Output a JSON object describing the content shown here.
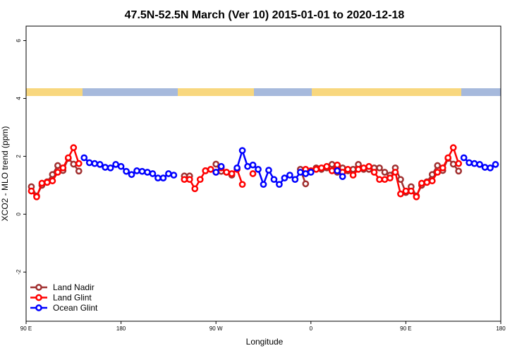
{
  "chart_data": {
    "type": "line",
    "title": "47.5N-52.5N March (Ver 10)   2015-01-01 to 2020-12-18",
    "xlabel": "Longitude",
    "ylabel": "XCO2 - MLO trend (ppm)",
    "xlim": [
      90,
      540
    ],
    "ylim": [
      -3.7,
      6.5
    ],
    "xticks": [
      {
        "value": 90,
        "label": "90 E"
      },
      180,
      {
        "value": 270,
        "label": "90 W"
      },
      {
        "value": 360,
        "label": "0"
      },
      {
        "value": 450,
        "label": "90 E"
      },
      {
        "value": 540,
        "label": "180"
      }
    ],
    "yticks": [
      -2,
      0,
      2,
      4,
      6
    ],
    "legend": "bottom-left",
    "x": [
      95,
      100,
      105,
      110,
      115,
      120,
      125,
      130,
      135,
      140,
      145,
      150,
      155,
      160,
      165,
      170,
      175,
      180,
      185,
      190,
      195,
      200,
      205,
      210,
      215,
      220,
      225,
      230,
      235,
      240,
      245,
      250,
      255,
      260,
      265,
      270,
      275,
      280,
      285,
      290,
      295,
      300,
      305,
      310,
      315,
      320,
      325,
      330,
      335,
      340,
      345,
      350,
      355,
      360,
      365,
      370,
      375,
      380,
      385,
      390,
      395,
      400,
      405,
      410,
      415,
      420,
      425,
      430,
      435,
      440,
      445,
      450,
      455,
      460,
      465,
      470,
      475,
      480,
      485,
      490,
      495,
      500,
      505,
      510,
      515,
      520,
      525,
      530,
      535
    ],
    "series": [
      {
        "name": "Land Nadir",
        "color": "#a03030",
        "values": [
          0.95,
          0.63,
          1.0,
          1.12,
          1.37,
          1.68,
          1.51,
          1.93,
          1.73,
          1.49,
          null,
          null,
          null,
          null,
          null,
          null,
          null,
          null,
          null,
          null,
          null,
          null,
          null,
          null,
          null,
          null,
          null,
          null,
          null,
          1.32,
          1.32,
          null,
          null,
          1.5,
          null,
          1.73,
          1.48,
          1.45,
          1.35,
          null,
          null,
          null,
          null,
          null,
          null,
          null,
          null,
          null,
          null,
          null,
          null,
          1.55,
          1.05,
          null,
          1.6,
          1.55,
          1.6,
          1.72,
          1.45,
          1.6,
          1.5,
          1.55,
          1.72,
          1.55,
          1.55,
          1.6,
          1.6,
          1.45,
          1.35,
          1.6,
          1.2,
          0.75,
          0.95,
          0.63,
          1.0,
          1.12,
          1.37,
          1.68,
          1.51,
          1.93,
          1.73,
          1.49,
          null,
          null,
          null,
          null,
          null,
          null,
          null
        ]
      },
      {
        "name": "Land Glint",
        "color": "#ff0000",
        "values": [
          0.8,
          0.6,
          1.07,
          1.1,
          1.15,
          1.45,
          1.6,
          1.95,
          2.3,
          1.75,
          null,
          null,
          null,
          null,
          null,
          null,
          null,
          null,
          null,
          null,
          null,
          null,
          null,
          null,
          null,
          null,
          null,
          null,
          null,
          1.2,
          1.2,
          0.88,
          1.2,
          1.5,
          1.55,
          1.45,
          1.6,
          1.45,
          1.4,
          1.55,
          1.03,
          null,
          1.4,
          null,
          null,
          null,
          null,
          null,
          null,
          null,
          null,
          null,
          1.55,
          1.5,
          1.55,
          1.6,
          1.65,
          1.5,
          1.7,
          1.45,
          1.55,
          1.35,
          1.55,
          1.6,
          1.65,
          1.45,
          1.2,
          1.2,
          1.25,
          1.45,
          0.7,
          0.8,
          0.8,
          0.6,
          1.07,
          1.1,
          1.15,
          1.45,
          1.6,
          1.95,
          2.3,
          1.75,
          null,
          null,
          null,
          null,
          null,
          null,
          null
        ]
      },
      {
        "name": "Ocean Glint",
        "color": "#0000ff",
        "values": [
          null,
          null,
          null,
          null,
          null,
          null,
          null,
          null,
          null,
          null,
          1.95,
          1.78,
          1.75,
          1.72,
          1.62,
          1.6,
          1.72,
          1.65,
          1.48,
          1.37,
          1.5,
          1.48,
          1.45,
          1.4,
          1.25,
          1.25,
          1.4,
          1.35,
          null,
          null,
          null,
          null,
          null,
          null,
          null,
          1.45,
          1.65,
          null,
          null,
          1.6,
          2.2,
          1.65,
          1.7,
          1.55,
          1.03,
          1.52,
          1.2,
          1.03,
          1.25,
          1.35,
          1.2,
          1.45,
          1.4,
          1.45,
          null,
          null,
          null,
          null,
          1.5,
          1.3,
          null,
          null,
          null,
          null,
          null,
          null,
          null,
          null,
          null,
          null,
          null,
          null,
          null,
          null,
          null,
          null,
          null,
          null,
          null,
          null,
          null,
          null,
          1.95,
          1.78,
          1.75,
          1.72,
          1.62,
          1.6,
          1.72
        ]
      }
    ]
  }
}
